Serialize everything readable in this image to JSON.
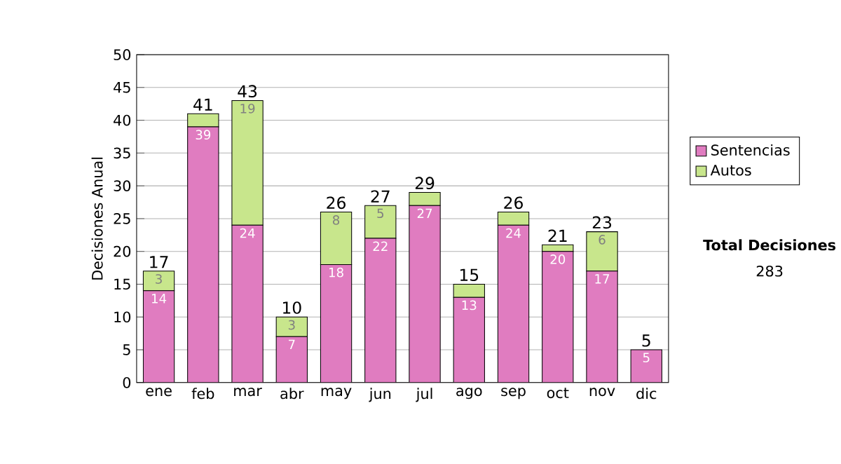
{
  "chart_data": {
    "type": "bar",
    "stacked": true,
    "ylabel": "Decisiones Anual",
    "categories": [
      "ene",
      "feb",
      "mar",
      "abr",
      "may",
      "jun",
      "jul",
      "ago",
      "sep",
      "oct",
      "nov",
      "dic"
    ],
    "series": [
      {
        "name": "Sentencias",
        "color": "#e07cc0",
        "values": [
          14,
          39,
          24,
          7,
          18,
          22,
          27,
          13,
          24,
          20,
          17,
          5
        ],
        "value_labels": [
          "14",
          "39",
          "24",
          "7",
          "18",
          "22",
          "27",
          "13",
          "24",
          "20",
          "17",
          "5"
        ]
      },
      {
        "name": "Autos",
        "color": "#c8e68c",
        "values": [
          3,
          2,
          19,
          3,
          8,
          5,
          2,
          2,
          2,
          1,
          6,
          0
        ],
        "value_labels": [
          "3",
          null,
          "19",
          "3",
          "8",
          "5",
          null,
          null,
          null,
          null,
          "6",
          null
        ]
      }
    ],
    "totals": [
      "17",
      "41",
      "43",
      "10",
      "26",
      "27",
      "29",
      "15",
      "26",
      "21",
      "23",
      "5"
    ],
    "ylim": [
      0,
      50
    ],
    "yticks": [
      0,
      5,
      10,
      15,
      20,
      25,
      30,
      35,
      40,
      45,
      50
    ],
    "grid": "y",
    "legend": "right",
    "annotations": [
      "Total Decisiones",
      "283"
    ]
  }
}
